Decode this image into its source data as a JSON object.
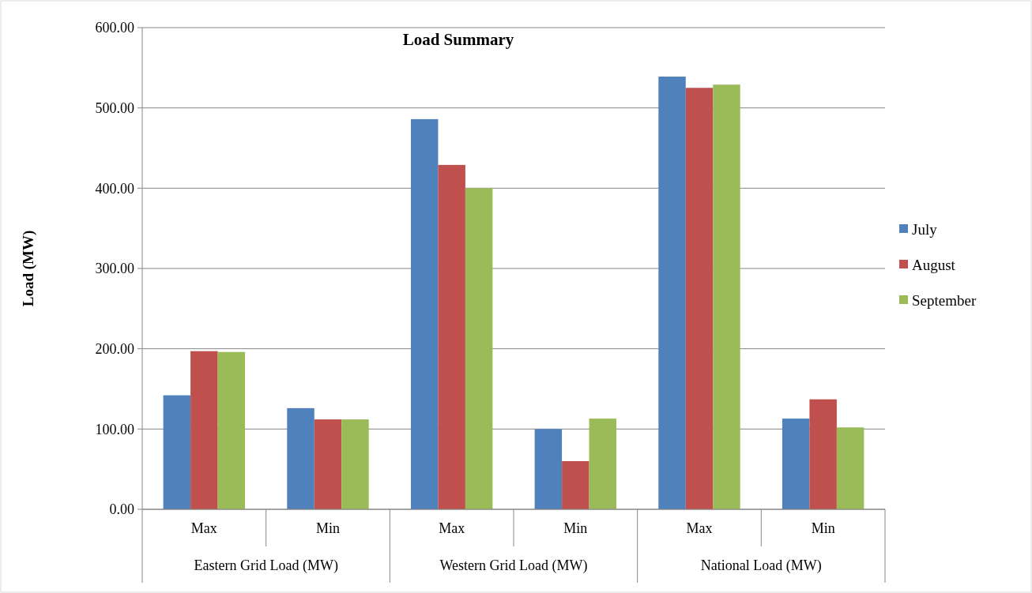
{
  "chart_data": {
    "type": "bar",
    "title": "Load Summary",
    "ylabel": "Load (MW)",
    "categories": [
      "Max",
      "Min",
      "Max",
      "Min",
      "Max",
      "Min"
    ],
    "annotations": [
      "Eastern Grid Load (MW)",
      "Western Grid Load (MW)",
      "National Load (MW)"
    ],
    "series": [
      {
        "name": "July",
        "color": "#4f81bd",
        "values": [
          142,
          126,
          486,
          100,
          539,
          113
        ]
      },
      {
        "name": "August",
        "color": "#c0504d",
        "values": [
          197,
          112,
          429,
          60,
          525,
          137
        ]
      },
      {
        "name": "September",
        "color": "#9bbb59",
        "values": [
          196,
          112,
          400,
          113,
          529,
          102
        ]
      }
    ],
    "ylim": [
      0,
      600
    ],
    "yticks": [
      {
        "value": 0,
        "label": "0.00"
      },
      {
        "value": 100,
        "label": "100.00"
      },
      {
        "value": 200,
        "label": "200.00"
      },
      {
        "value": 300,
        "label": "300.00"
      },
      {
        "value": 400,
        "label": "400.00"
      },
      {
        "value": 500,
        "label": "500.00"
      },
      {
        "value": 600,
        "label": "600.00"
      }
    ],
    "grid": "y",
    "legend": "right"
  }
}
